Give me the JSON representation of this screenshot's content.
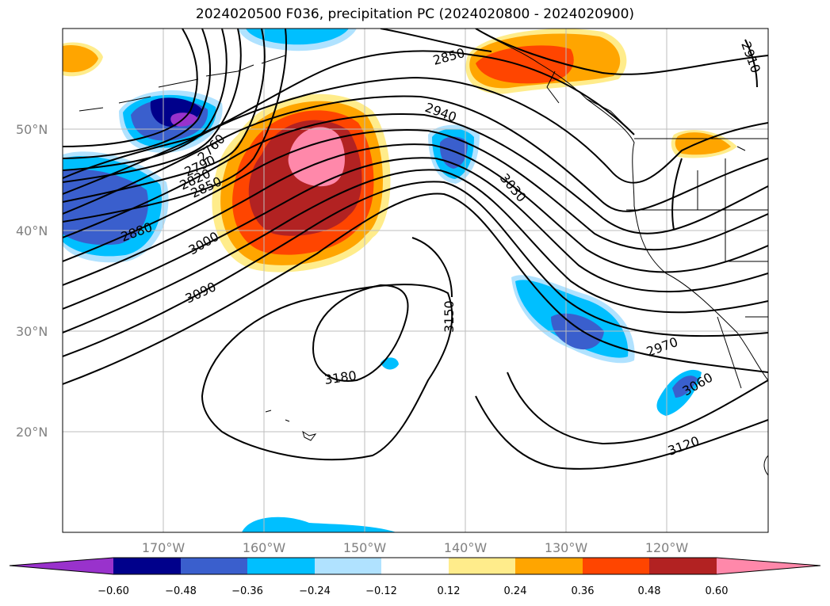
{
  "title": "2024020500 F036, precipitation PC (2024020800 - 2024020900)",
  "map": {
    "lat_labels": [
      "50°N",
      "40°N",
      "30°N",
      "20°N"
    ],
    "lon_labels": [
      "170°W",
      "160°W",
      "150°W",
      "140°W",
      "130°W",
      "120°W"
    ]
  },
  "contour_labels": [
    "2850",
    "2940",
    "3030",
    "2910",
    "2880",
    "3000",
    "3090",
    "3150",
    "3180",
    "2970",
    "3060",
    "3120",
    "2850",
    "2820",
    "2790",
    "2760"
  ],
  "colorbar": {
    "ticks": [
      "−0.60",
      "−0.48",
      "−0.36",
      "−0.24",
      "−0.12",
      "0.12",
      "0.24",
      "0.36",
      "0.48",
      "0.60"
    ],
    "colors": [
      "#9932CC",
      "#00008B",
      "#3A5FCD",
      "#00BFFF",
      "#B0E2FF",
      "#FFFFFF",
      "#FFEC8B",
      "#FFA500",
      "#FF4500",
      "#B22222",
      "#FF88AA"
    ]
  }
}
